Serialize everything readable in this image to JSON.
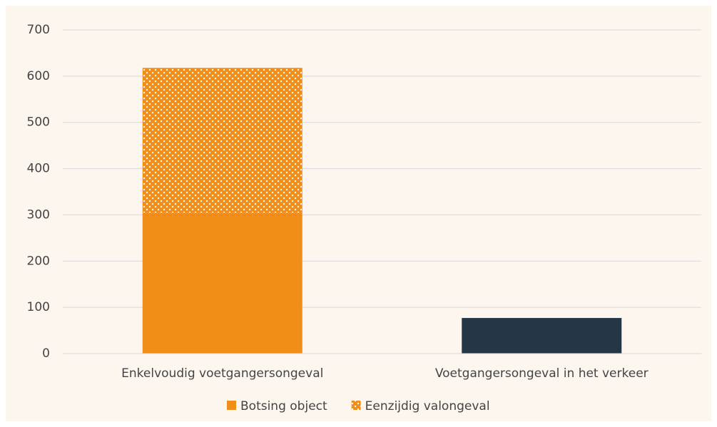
{
  "chart_data": {
    "type": "stacked_bar",
    "categories": [
      "Enkelvoudig voetgangersongeval",
      "Voetgangersongeval in het verkeer"
    ],
    "series": [
      {
        "name": "Botsing object",
        "color": "#f08e19",
        "values": [
          305,
          null
        ]
      },
      {
        "name": "Eenzijdig valongeval",
        "color": "#f08e19",
        "pattern": "dots",
        "values": [
          313,
          null
        ]
      },
      {
        "color": "#253746",
        "values": [
          null,
          77
        ]
      }
    ],
    "ylim": [
      0,
      700
    ],
    "yticks": [
      0,
      100,
      200,
      300,
      400,
      500,
      600,
      700
    ],
    "grid": true,
    "legend": "bottom"
  }
}
